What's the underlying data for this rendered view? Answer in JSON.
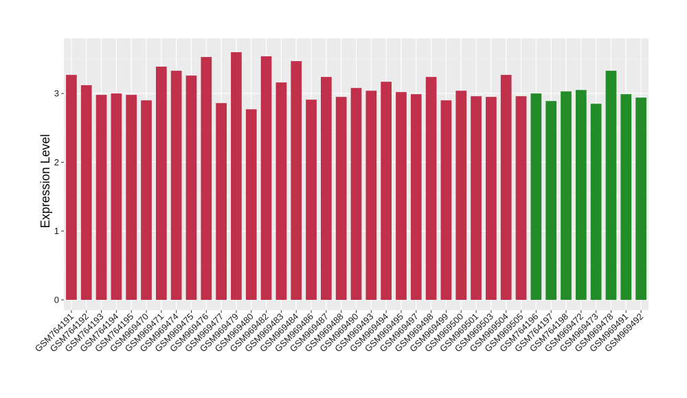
{
  "chart_data": {
    "type": "bar",
    "title": "",
    "xlabel": "",
    "ylabel": "Expression Level",
    "ylim": [
      -0.15,
      3.8
    ],
    "yticks": [
      0,
      1,
      2,
      3
    ],
    "grid": true,
    "legend": "none",
    "colors": {
      "group_a": "#c0304a",
      "group_b": "#238b28",
      "panel_bg": "#ebebeb",
      "grid_major": "#ffffff",
      "grid_minor": "#f5f5f5"
    },
    "categories": [
      "GSM764191",
      "GSM764192",
      "GSM764193",
      "GSM764194",
      "GSM764195",
      "GSM969470",
      "GSM969471",
      "GSM969474",
      "GSM969475",
      "GSM969476",
      "GSM969477",
      "GSM969479",
      "GSM969480",
      "GSM969482",
      "GSM969483",
      "GSM969484",
      "GSM969486",
      "GSM969487",
      "GSM969488",
      "GSM969490",
      "GSM969493",
      "GSM969494",
      "GSM969495",
      "GSM969497",
      "GSM969498",
      "GSM969499",
      "GSM969500",
      "GSM969501",
      "GSM969503",
      "GSM969504",
      "GSM969505",
      "GSM764196",
      "GSM764197",
      "GSM764198",
      "GSM969472",
      "GSM969473",
      "GSM969478",
      "GSM969491",
      "GSM969492"
    ],
    "values": [
      3.27,
      3.12,
      2.98,
      3.0,
      2.98,
      2.9,
      3.39,
      3.33,
      3.26,
      3.53,
      2.86,
      3.6,
      2.77,
      3.54,
      3.16,
      3.47,
      2.91,
      3.24,
      2.95,
      3.08,
      3.04,
      3.17,
      3.02,
      2.99,
      3.24,
      2.9,
      3.04,
      2.96,
      2.95,
      3.27,
      2.96,
      3.0,
      2.89,
      3.03,
      3.05,
      2.85,
      3.33,
      2.99,
      2.94
    ],
    "groups": [
      "a",
      "a",
      "a",
      "a",
      "a",
      "a",
      "a",
      "a",
      "a",
      "a",
      "a",
      "a",
      "a",
      "a",
      "a",
      "a",
      "a",
      "a",
      "a",
      "a",
      "a",
      "a",
      "a",
      "a",
      "a",
      "a",
      "a",
      "a",
      "a",
      "a",
      "a",
      "b",
      "b",
      "b",
      "b",
      "b",
      "b",
      "b",
      "b"
    ]
  }
}
